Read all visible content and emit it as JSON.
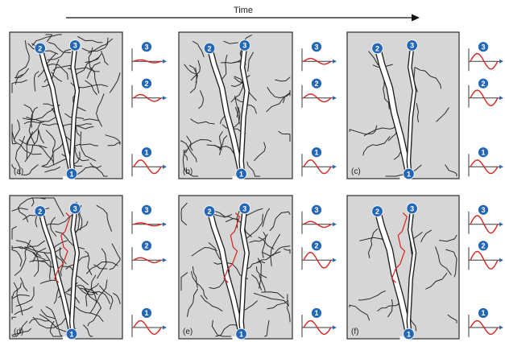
{
  "title": "Time",
  "colors": {
    "panel_fill": "#d6d6d6",
    "node_blue": "#2567b7",
    "wave_red": "#d7231e",
    "axis_blue": "#2f64b0",
    "channel_white": "#ffffff"
  },
  "panels": [
    {
      "label": "(a)",
      "nodes": [
        "1",
        "2",
        "3"
      ],
      "waves": [
        {
          "node": "3",
          "amplitude": 0.15
        },
        {
          "node": "2",
          "amplitude": 0.35
        },
        {
          "node": "1",
          "amplitude": 0.7
        }
      ],
      "branch_density": "high",
      "extra_path": false
    },
    {
      "label": "(b)",
      "nodes": [
        "1",
        "2",
        "3"
      ],
      "waves": [
        {
          "node": "3",
          "amplitude": 0.3
        },
        {
          "node": "2",
          "amplitude": 0.4
        },
        {
          "node": "1",
          "amplitude": 0.7
        }
      ],
      "branch_density": "medium",
      "extra_path": false
    },
    {
      "label": "(c)",
      "nodes": [
        "1",
        "2",
        "3"
      ],
      "waves": [
        {
          "node": "3",
          "amplitude": 0.8
        },
        {
          "node": "2",
          "amplitude": 0.8
        },
        {
          "node": "1",
          "amplitude": 0.7
        }
      ],
      "branch_density": "low",
      "extra_path": false
    },
    {
      "label": "(d)",
      "nodes": [
        "1",
        "2",
        "3"
      ],
      "waves": [
        {
          "node": "3",
          "amplitude": 0.15
        },
        {
          "node": "2",
          "amplitude": 0.25
        },
        {
          "node": "1",
          "amplitude": 0.7
        }
      ],
      "branch_density": "high",
      "extra_path": true
    },
    {
      "label": "(e)",
      "nodes": [
        "1",
        "2",
        "3"
      ],
      "waves": [
        {
          "node": "3",
          "amplitude": 0.3
        },
        {
          "node": "2",
          "amplitude": 0.8
        },
        {
          "node": "1",
          "amplitude": 0.7
        }
      ],
      "branch_density": "medium",
      "extra_path": true
    },
    {
      "label": "(f)",
      "nodes": [
        "1",
        "2",
        "3"
      ],
      "waves": [
        {
          "node": "3",
          "amplitude": 0.9
        },
        {
          "node": "2",
          "amplitude": 0.9
        },
        {
          "node": "1",
          "amplitude": 0.7
        }
      ],
      "branch_density": "low",
      "extra_path": true
    }
  ]
}
